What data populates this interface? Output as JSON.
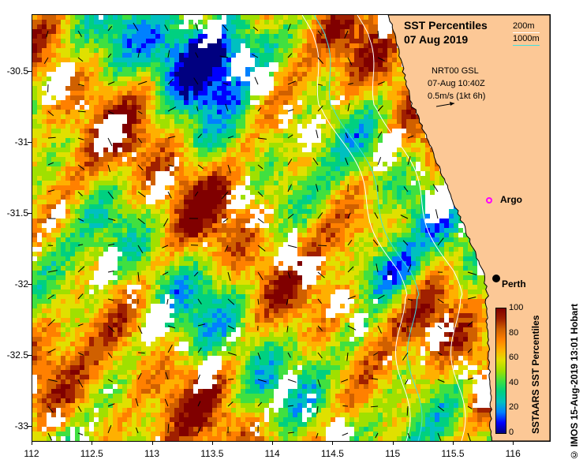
{
  "title": {
    "line1": "SST Percentiles",
    "line2": "07 Aug 2019"
  },
  "depth_legend": {
    "items": [
      {
        "label": "200m",
        "color": "#ffffff"
      },
      {
        "label": "1000m",
        "color": "#40e0e0"
      }
    ]
  },
  "current_info": {
    "source": "NRT00 GSL",
    "time": "07-Aug 10:40Z",
    "scale_label": "0.5m/s (1kt 6h)"
  },
  "places": {
    "argo": "Argo",
    "perth": "Perth"
  },
  "axes": {
    "x_ticks": [
      "112",
      "112.5",
      "113",
      "113.5",
      "114",
      "114.5",
      "115",
      "115.5",
      "116"
    ],
    "x_values": [
      112,
      112.5,
      113,
      113.5,
      114,
      114.5,
      115,
      115.5,
      116
    ],
    "y_ticks": [
      "-30.5",
      "-31",
      "-31.5",
      "-32",
      "-32.5",
      "-33"
    ],
    "y_values": [
      -30.5,
      -31,
      -31.5,
      -32,
      -32.5,
      -33
    ],
    "lon_range": [
      112,
      116.3
    ],
    "lat_range": [
      -33.1,
      -30.1
    ]
  },
  "colorbar": {
    "title": "SSTAARS SST Percentiles",
    "ticks": [
      "100",
      "80",
      "60",
      "40",
      "20",
      "0"
    ],
    "tick_values": [
      100,
      80,
      60,
      40,
      20,
      0
    ],
    "colors": [
      "#000080",
      "#0000ff",
      "#0080ff",
      "#00c0c0",
      "#00d080",
      "#40e040",
      "#a0e000",
      "#e0e000",
      "#ffb000",
      "#ff8000",
      "#d06000",
      "#a02000",
      "#800000"
    ]
  },
  "colors": {
    "land": "#fcc896",
    "coast": "#000000",
    "missing": "#ffffff",
    "argo_marker": "#ff00ff",
    "perth_marker": "#000000"
  },
  "credit": "© IMOS 15-Aug-2019 13:01 Hobart"
}
